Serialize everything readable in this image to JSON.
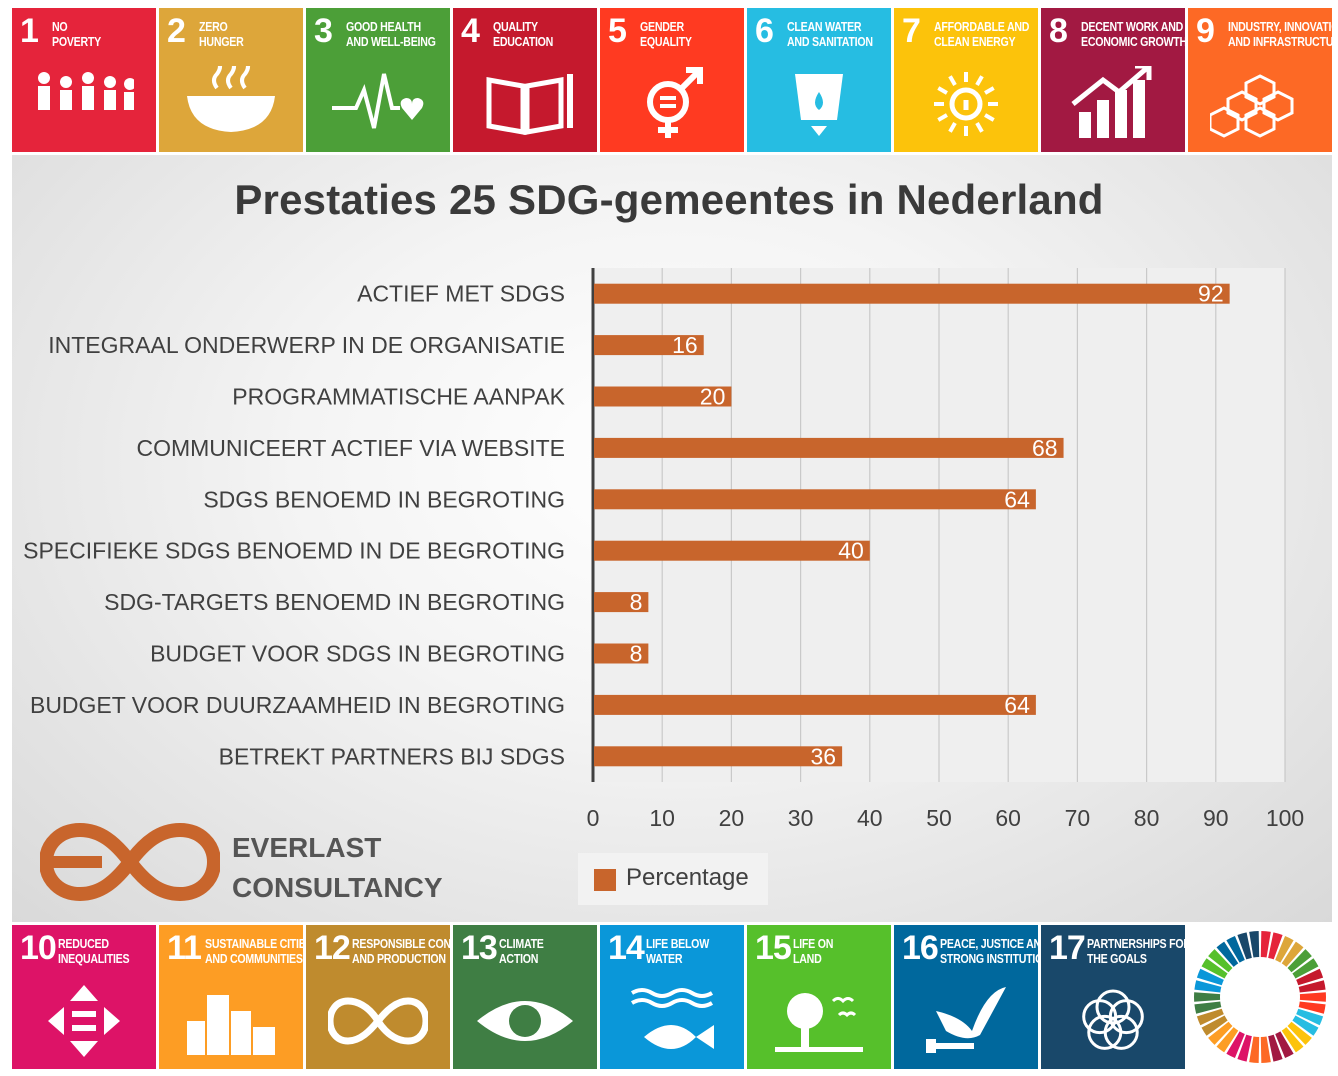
{
  "top_goals": [
    {
      "num": "1",
      "label": "No poverty",
      "color": "#e5243b",
      "icon": "family-icon"
    },
    {
      "num": "2",
      "label": "Zero hunger",
      "color": "#dda63a",
      "icon": "bowl-icon"
    },
    {
      "num": "3",
      "label": "Good health and well-being",
      "color": "#4c9f38",
      "icon": "heartbeat-icon"
    },
    {
      "num": "4",
      "label": "Quality education",
      "color": "#c5192d",
      "icon": "book-icon"
    },
    {
      "num": "5",
      "label": "Gender equality",
      "color": "#ff3a21",
      "icon": "gender-icon"
    },
    {
      "num": "6",
      "label": "Clean water and sanitation",
      "color": "#26bde2",
      "icon": "water-icon"
    },
    {
      "num": "7",
      "label": "Affordable and clean energy",
      "color": "#fcc30b",
      "icon": "sun-power-icon"
    },
    {
      "num": "8",
      "label": "Decent work and economic growth",
      "color": "#a21942",
      "icon": "growth-chart-icon"
    },
    {
      "num": "9",
      "label": "Industry, innovation and infrastructure",
      "color": "#fd6925",
      "icon": "cubes-icon"
    }
  ],
  "bottom_goals": [
    {
      "num": "10",
      "label": "Reduced inequalities",
      "color": "#dd1367",
      "icon": "equality-arrows-icon"
    },
    {
      "num": "11",
      "label": "Sustainable cities and communities",
      "color": "#fd9d24",
      "icon": "buildings-icon"
    },
    {
      "num": "12",
      "label": "Responsible consumption and production",
      "color": "#bf8b2e",
      "icon": "infinity-icon"
    },
    {
      "num": "13",
      "label": "Climate action",
      "color": "#3f7e44",
      "icon": "eye-globe-icon"
    },
    {
      "num": "14",
      "label": "Life below water",
      "color": "#0a97d9",
      "icon": "fish-icon"
    },
    {
      "num": "15",
      "label": "Life on land",
      "color": "#56c02b",
      "icon": "tree-icon"
    },
    {
      "num": "16",
      "label": "Peace, justice and strong institutions",
      "color": "#00689d",
      "icon": "dove-icon"
    },
    {
      "num": "17",
      "label": "Partnerships for the goals",
      "color": "#19486a",
      "icon": "rings-icon"
    }
  ],
  "wheel_colors": [
    "#e5243b",
    "#dda63a",
    "#4c9f38",
    "#c5192d",
    "#ff3a21",
    "#26bde2",
    "#fcc30b",
    "#a21942",
    "#fd6925",
    "#dd1367",
    "#fd9d24",
    "#bf8b2e",
    "#3f7e44",
    "#0a97d9",
    "#56c02b",
    "#00689d",
    "#19486a"
  ],
  "brand": {
    "line1": "EVERLAST",
    "line2": "CONSULTANCY",
    "color": "#c8652c"
  },
  "chart_data": {
    "type": "bar",
    "orientation": "horizontal",
    "title": "Prestaties 25 SDG-gemeentes in Nederland",
    "categories": [
      "ACTIEF MET SDGS",
      "INTEGRAAL ONDERWERP IN DE ORGANISATIE",
      "PROGRAMMATISCHE AANPAK",
      "COMMUNICEERT ACTIEF VIA WEBSITE",
      "SDGS BENOEMD IN BEGROTING",
      "SPECIFIEKE SDGS BENOEMD IN DE BEGROTING",
      "SDG-TARGETS BENOEMD IN BEGROTING",
      "BUDGET VOOR SDGS IN BEGROTING",
      "BUDGET VOOR DUURZAAMHEID IN BEGROTING",
      "BETREKT PARTNERS BIJ SDGS"
    ],
    "series": [
      {
        "name": "Percentage",
        "values": [
          92,
          16,
          20,
          68,
          64,
          40,
          8,
          8,
          64,
          36
        ],
        "color": "#c8652c"
      }
    ],
    "xlim": [
      0,
      100
    ],
    "xticks": [
      0,
      10,
      20,
      30,
      40,
      50,
      60,
      70,
      80,
      90,
      100
    ],
    "grid": true,
    "legend": "bottom",
    "data_labels": true
  }
}
